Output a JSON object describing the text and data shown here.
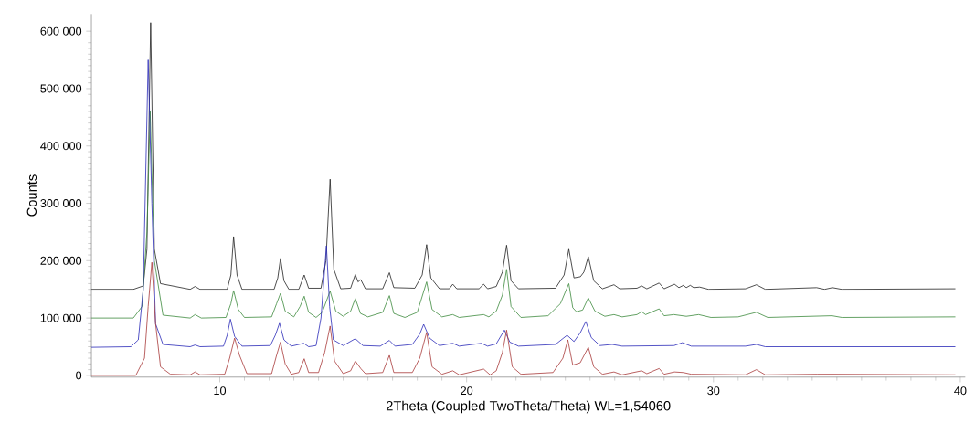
{
  "chart_data": {
    "type": "line",
    "xlabel": "2Theta (Coupled TwoTheta/Theta) WL=1,54060",
    "ylabel": "Counts",
    "xlim": [
      4.8,
      40.2
    ],
    "ylim": [
      -3000,
      630000
    ],
    "xticks": [
      10,
      20,
      30,
      40
    ],
    "yticks": [
      {
        "value": 0,
        "label": "0"
      },
      {
        "value": 100000,
        "label": "100 000"
      },
      {
        "value": 200000,
        "label": "200 000"
      },
      {
        "value": 300000,
        "label": "300 000"
      },
      {
        "value": 400000,
        "label": "400 000"
      },
      {
        "value": 500000,
        "label": "500 000"
      },
      {
        "value": 600000,
        "label": "600 000"
      }
    ],
    "grid": false,
    "marker": "none",
    "line_style": "solid",
    "series": [
      {
        "color": "#222222",
        "x": [
          4.8,
          6.5,
          6.9,
          7.05,
          7.2,
          7.35,
          7.6,
          8.8,
          9.0,
          9.2,
          10.3,
          10.45,
          10.56,
          10.7,
          10.9,
          12.2,
          12.35,
          12.46,
          12.6,
          12.8,
          13.2,
          13.42,
          13.6,
          14.1,
          14.3,
          14.47,
          14.62,
          14.9,
          15.3,
          15.49,
          15.6,
          15.71,
          15.9,
          16.6,
          16.87,
          17.05,
          17.9,
          18.2,
          18.38,
          18.55,
          18.9,
          19.3,
          19.44,
          19.6,
          20.5,
          20.69,
          20.85,
          21.2,
          21.45,
          21.62,
          21.8,
          22.1,
          23.6,
          23.95,
          24.14,
          24.35,
          24.61,
          24.75,
          24.93,
          25.15,
          25.5,
          25.97,
          26.2,
          26.9,
          27.09,
          27.3,
          27.8,
          28.0,
          28.42,
          28.6,
          28.78,
          28.9,
          29.06,
          29.2,
          29.44,
          29.8,
          31.3,
          31.74,
          32.1,
          34.18,
          34.5,
          34.82,
          35.2,
          39.8
        ],
        "values": [
          150000,
          150000,
          156000,
          220000,
          615000,
          220000,
          160000,
          150000,
          155000,
          150000,
          150000,
          175000,
          242000,
          175000,
          150000,
          150000,
          170000,
          204000,
          165000,
          150000,
          150000,
          175000,
          152000,
          152000,
          200000,
          342000,
          185000,
          151000,
          152000,
          176000,
          163000,
          167000,
          151000,
          151000,
          179000,
          153000,
          152000,
          175000,
          228000,
          170000,
          151000,
          151000,
          159000,
          151000,
          151000,
          159000,
          151000,
          155000,
          180000,
          227000,
          165000,
          151000,
          152000,
          175000,
          220000,
          170000,
          172000,
          180000,
          207000,
          165000,
          151000,
          158000,
          151000,
          152000,
          156000,
          151000,
          161000,
          151000,
          159000,
          153000,
          157000,
          153000,
          157000,
          153000,
          154000,
          150000,
          151000,
          158000,
          150000,
          153000,
          150000,
          153000,
          150000,
          151000
        ]
      },
      {
        "color": "#3d8a3d",
        "x": [
          4.8,
          6.5,
          6.85,
          7.05,
          7.18,
          7.35,
          7.7,
          8.8,
          9.0,
          9.25,
          10.25,
          10.45,
          10.56,
          10.75,
          11.0,
          12.1,
          12.3,
          12.46,
          12.65,
          13.0,
          13.25,
          13.42,
          13.6,
          13.9,
          14.15,
          14.47,
          14.7,
          15.0,
          15.3,
          15.49,
          15.7,
          16.0,
          16.6,
          16.87,
          17.05,
          17.5,
          18.0,
          18.38,
          18.6,
          19.0,
          19.44,
          19.7,
          20.69,
          20.9,
          21.2,
          21.45,
          21.62,
          21.8,
          22.2,
          23.3,
          23.8,
          24.14,
          24.3,
          24.45,
          24.7,
          24.93,
          25.2,
          25.6,
          25.97,
          26.3,
          26.9,
          27.09,
          27.25,
          27.8,
          28.0,
          28.4,
          28.9,
          29.4,
          29.9,
          31.0,
          31.74,
          32.2,
          34.8,
          35.2,
          39.8
        ],
        "values": [
          100000,
          100000,
          120000,
          250000,
          460000,
          200000,
          105000,
          100000,
          106000,
          100000,
          101000,
          125000,
          148000,
          115000,
          101000,
          102000,
          125000,
          143000,
          112000,
          102000,
          120000,
          138000,
          110000,
          101000,
          110000,
          147000,
          112000,
          103000,
          112000,
          134000,
          108000,
          102000,
          110000,
          139000,
          108000,
          101000,
          110000,
          163000,
          115000,
          102000,
          106000,
          101000,
          106000,
          102000,
          112000,
          140000,
          185000,
          120000,
          101000,
          104000,
          125000,
          160000,
          118000,
          111000,
          114000,
          135000,
          112000,
          103000,
          106000,
          102000,
          106000,
          111000,
          106000,
          116000,
          104000,
          106000,
          103000,
          106000,
          101000,
          102000,
          110000,
          101000,
          104000,
          101000,
          102000
        ]
      },
      {
        "color": "#2a2ab8",
        "x": [
          4.8,
          6.4,
          6.7,
          6.9,
          7.1,
          7.25,
          7.4,
          7.7,
          8.8,
          9.0,
          9.2,
          10.15,
          10.3,
          10.43,
          10.6,
          10.9,
          12.05,
          12.25,
          12.42,
          12.6,
          12.9,
          13.4,
          13.6,
          13.9,
          14.1,
          14.32,
          14.45,
          14.6,
          15.0,
          15.49,
          15.8,
          16.5,
          16.87,
          17.1,
          17.8,
          18.1,
          18.26,
          18.5,
          18.9,
          19.44,
          19.7,
          20.6,
          20.85,
          21.2,
          21.53,
          21.75,
          22.1,
          23.6,
          24.07,
          24.35,
          24.6,
          24.83,
          25.05,
          25.4,
          25.9,
          26.3,
          28.4,
          28.74,
          29.1,
          31.3,
          31.74,
          32.1,
          39.8
        ],
        "values": [
          49000,
          50000,
          62000,
          150000,
          550000,
          300000,
          90000,
          54000,
          50000,
          53000,
          50000,
          51000,
          70000,
          98000,
          68000,
          51000,
          52000,
          70000,
          91000,
          62000,
          51000,
          56000,
          50000,
          52000,
          100000,
          226000,
          120000,
          62000,
          52000,
          64000,
          52000,
          51000,
          61000,
          51000,
          54000,
          72000,
          89000,
          65000,
          52000,
          56000,
          51000,
          56000,
          51000,
          55000,
          79000,
          58000,
          51000,
          54000,
          70000,
          59000,
          74000,
          94000,
          66000,
          52000,
          54000,
          51000,
          52000,
          57000,
          51000,
          51000,
          54000,
          50000,
          50000
        ]
      },
      {
        "color": "#a83a3a",
        "x": [
          4.8,
          6.6,
          6.95,
          7.1,
          7.25,
          7.4,
          7.6,
          8.0,
          8.8,
          9.0,
          9.2,
          10.2,
          10.4,
          10.6,
          10.8,
          11.1,
          12.1,
          12.3,
          12.46,
          12.65,
          12.9,
          13.2,
          13.42,
          13.6,
          14.0,
          14.25,
          14.47,
          14.65,
          15.0,
          15.3,
          15.49,
          15.71,
          15.9,
          16.6,
          16.87,
          17.05,
          17.8,
          18.1,
          18.38,
          18.6,
          19.0,
          19.44,
          19.7,
          20.69,
          20.95,
          21.2,
          21.45,
          21.62,
          21.85,
          22.2,
          23.5,
          23.9,
          24.1,
          24.3,
          24.6,
          24.93,
          25.15,
          25.5,
          25.97,
          26.3,
          27.09,
          27.3,
          27.8,
          28.0,
          28.42,
          28.78,
          29.1,
          31.3,
          31.74,
          32.1,
          34.2,
          34.82,
          39.8
        ],
        "values": [
          0,
          0,
          30000,
          120000,
          197000,
          90000,
          15000,
          2000,
          1000,
          6000,
          1000,
          2000,
          30000,
          65000,
          35000,
          3000,
          3000,
          35000,
          58000,
          20000,
          2000,
          5000,
          29000,
          5000,
          5000,
          40000,
          86000,
          25000,
          3000,
          8000,
          25000,
          12000,
          3000,
          5000,
          35000,
          5000,
          5000,
          30000,
          75000,
          15000,
          2000,
          8000,
          1000,
          11000,
          1000,
          8000,
          40000,
          79000,
          15000,
          2000,
          5000,
          30000,
          62000,
          18000,
          22000,
          49000,
          15000,
          2000,
          6000,
          1000,
          8000,
          3000,
          12000,
          2000,
          6000,
          5000,
          2000,
          1000,
          10000,
          1000,
          2000,
          2000,
          1000
        ]
      }
    ]
  }
}
